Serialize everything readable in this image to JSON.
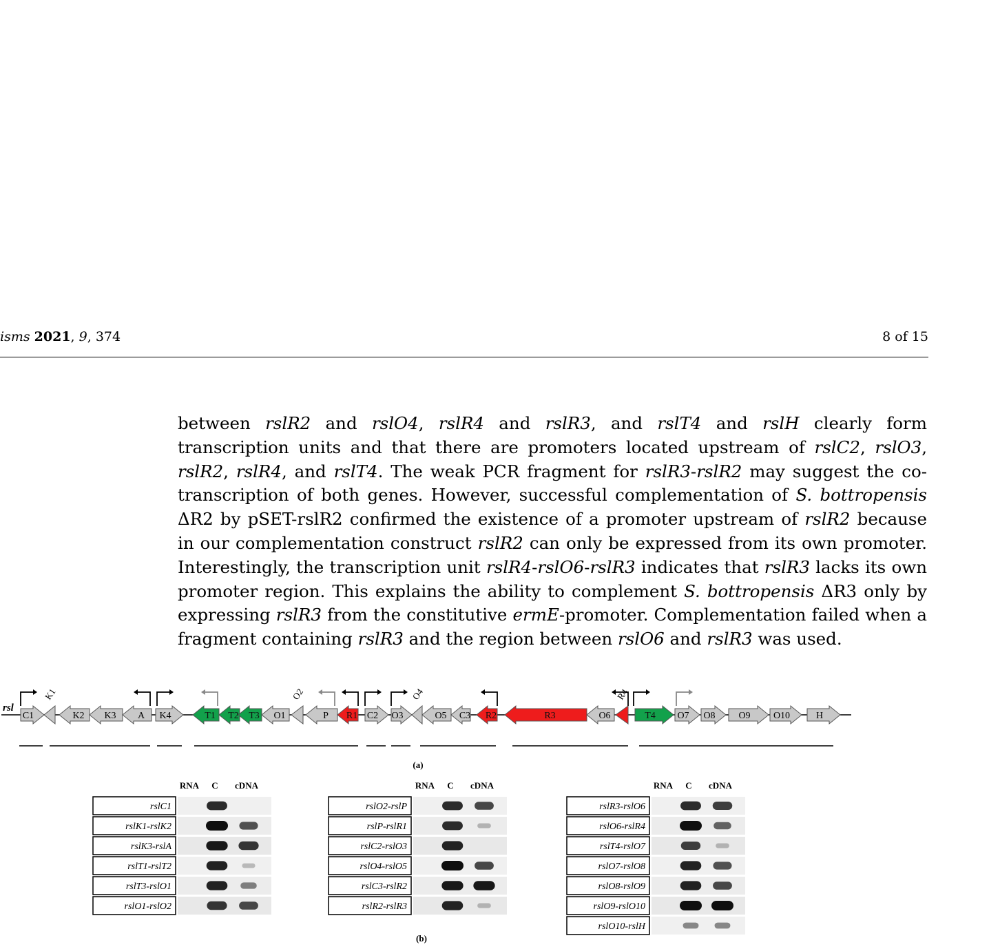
{
  "header": {
    "journal": "isms",
    "year": "2021",
    "volume": "9",
    "article": "374",
    "page": "8 of 15"
  },
  "paragraph": [
    {
      "t": "between "
    },
    {
      "i": "rslR2"
    },
    {
      "t": " and "
    },
    {
      "i": "rslO4"
    },
    {
      "t": ", "
    },
    {
      "i": "rslR4"
    },
    {
      "t": " and "
    },
    {
      "i": "rslR3"
    },
    {
      "t": ", and "
    },
    {
      "i": "rslT4"
    },
    {
      "t": " and "
    },
    {
      "i": "rslH"
    },
    {
      "t": " clearly form transcription units and that there are promoters located upstream of "
    },
    {
      "i": "rslC2"
    },
    {
      "t": ", "
    },
    {
      "i": "rslO3"
    },
    {
      "t": ", "
    },
    {
      "i": "rslR2"
    },
    {
      "t": ", "
    },
    {
      "i": "rslR4"
    },
    {
      "t": ", and "
    },
    {
      "i": "rslT4"
    },
    {
      "t": ". The weak PCR fragment for "
    },
    {
      "i": "rslR3"
    },
    {
      "t": "-"
    },
    {
      "i": "rslR2"
    },
    {
      "t": " may suggest the co-transcription of both genes. However, successful complementation of "
    },
    {
      "i": "S. bottropensis"
    },
    {
      "t": " ΔR2 by pSET-rslR2 confirmed the existence of a promoter upstream of "
    },
    {
      "i": "rslR2"
    },
    {
      "t": " because in our complementation construct "
    },
    {
      "i": "rslR2"
    },
    {
      "t": " can only be expressed from its own promoter. Interestingly, the transcription unit "
    },
    {
      "i": "rslR4"
    },
    {
      "t": "-"
    },
    {
      "i": "rslO6"
    },
    {
      "t": "-"
    },
    {
      "i": "rslR3"
    },
    {
      "t": " indicates that "
    },
    {
      "i": "rslR3"
    },
    {
      "t": " lacks its own promoter region. This explains the ability to complement "
    },
    {
      "i": "S. bottropensis"
    },
    {
      "t": " ΔR3 only by expressing "
    },
    {
      "i": "rslR3"
    },
    {
      "t": " from the constitutive "
    },
    {
      "i": "ermE"
    },
    {
      "t": "-promoter. Complementation failed when a fragment containing "
    },
    {
      "i": "rslR3"
    },
    {
      "t": " and the region between "
    },
    {
      "i": "rslO6"
    },
    {
      "t": " and "
    },
    {
      "i": "rslR3"
    },
    {
      "t": " was used."
    }
  ],
  "figure": {
    "cluster_label": "rsl",
    "panel_a_label": "(a)",
    "panel_b_label": "(b)",
    "colors": {
      "grey": "#c8c8c8",
      "green": "#12a14b",
      "red": "#ee1c1c"
    },
    "genes": [
      {
        "label": "C1",
        "dir": "right",
        "color": "grey",
        "start": 30,
        "end": 64,
        "outside": ""
      },
      {
        "label": "",
        "dir": "left",
        "color": "grey",
        "start": 64,
        "end": 80,
        "outside": "K1"
      },
      {
        "label": "K2",
        "dir": "left",
        "color": "grey",
        "start": 86,
        "end": 130,
        "outside": ""
      },
      {
        "label": "K3",
        "dir": "left",
        "color": "grey",
        "start": 130,
        "end": 178,
        "outside": ""
      },
      {
        "label": "A",
        "dir": "left",
        "color": "grey",
        "start": 178,
        "end": 220,
        "outside": ""
      },
      {
        "label": "K4",
        "dir": "right",
        "color": "grey",
        "start": 226,
        "end": 266,
        "outside": ""
      },
      {
        "label": "T1",
        "dir": "left",
        "color": "green",
        "start": 280,
        "end": 318,
        "outside": ""
      },
      {
        "label": "T2",
        "dir": "left",
        "color": "green",
        "start": 318,
        "end": 348,
        "outside": ""
      },
      {
        "label": "T3",
        "dir": "left",
        "color": "green",
        "start": 346,
        "end": 380,
        "outside": ""
      },
      {
        "label": "O1",
        "dir": "left",
        "color": "grey",
        "start": 380,
        "end": 420,
        "outside": ""
      },
      {
        "label": "",
        "dir": "left",
        "color": "grey",
        "start": 423,
        "end": 440,
        "outside": "O2"
      },
      {
        "label": "P",
        "dir": "left",
        "color": "grey",
        "start": 444,
        "end": 490,
        "outside": ""
      },
      {
        "label": "R1",
        "dir": "left",
        "color": "red",
        "start": 490,
        "end": 520,
        "outside": ""
      },
      {
        "label": "C2",
        "dir": "right",
        "color": "grey",
        "start": 530,
        "end": 564,
        "outside": ""
      },
      {
        "label": "O3",
        "dir": "right",
        "color": "grey",
        "start": 568,
        "end": 598,
        "outside": ""
      },
      {
        "label": "",
        "dir": "left",
        "color": "grey",
        "start": 598,
        "end": 613,
        "outside": "O4"
      },
      {
        "label": "O5",
        "dir": "left",
        "color": "grey",
        "start": 613,
        "end": 655,
        "outside": ""
      },
      {
        "label": "C3",
        "dir": "left",
        "color": "grey",
        "start": 655,
        "end": 683,
        "outside": ""
      },
      {
        "label": "R2",
        "dir": "left",
        "color": "red",
        "start": 692,
        "end": 722,
        "outside": ""
      },
      {
        "label": "R3",
        "dir": "left",
        "color": "red",
        "start": 733,
        "end": 852,
        "outside": ""
      },
      {
        "label": "O6",
        "dir": "left",
        "color": "grey",
        "start": 852,
        "end": 892,
        "outside": ""
      },
      {
        "label": "",
        "dir": "left",
        "color": "red",
        "start": 894,
        "end": 912,
        "outside": "R4"
      },
      {
        "label": "T4",
        "dir": "right",
        "color": "green",
        "start": 922,
        "end": 978,
        "outside": ""
      },
      {
        "label": "O7",
        "dir": "right",
        "color": "grey",
        "start": 980,
        "end": 1016,
        "outside": ""
      },
      {
        "label": "O8",
        "dir": "right",
        "color": "grey",
        "start": 1018,
        "end": 1054,
        "outside": ""
      },
      {
        "label": "O9",
        "dir": "right",
        "color": "grey",
        "start": 1058,
        "end": 1116,
        "outside": ""
      },
      {
        "label": "O10",
        "dir": "right",
        "color": "grey",
        "start": 1118,
        "end": 1164,
        "outside": ""
      },
      {
        "label": "H",
        "dir": "right",
        "color": "grey",
        "start": 1172,
        "end": 1220,
        "outside": ""
      }
    ],
    "promoters": [
      {
        "x": 30,
        "dir": "right",
        "color": "black"
      },
      {
        "x": 218,
        "dir": "left",
        "color": "black"
      },
      {
        "x": 228,
        "dir": "right",
        "color": "black"
      },
      {
        "x": 316,
        "dir": "left",
        "color": "grey"
      },
      {
        "x": 486,
        "dir": "left",
        "color": "grey"
      },
      {
        "x": 520,
        "dir": "left",
        "color": "black"
      },
      {
        "x": 530,
        "dir": "right",
        "color": "black"
      },
      {
        "x": 568,
        "dir": "right",
        "color": "black"
      },
      {
        "x": 722,
        "dir": "left",
        "color": "black"
      },
      {
        "x": 912,
        "dir": "left",
        "color": "black"
      },
      {
        "x": 920,
        "dir": "right",
        "color": "black"
      },
      {
        "x": 982,
        "dir": "right",
        "color": "grey"
      }
    ],
    "units": [
      [
        28,
        62
      ],
      [
        72,
        218
      ],
      [
        228,
        264
      ],
      [
        282,
        520
      ],
      [
        532,
        560
      ],
      [
        568,
        596
      ],
      [
        610,
        720
      ],
      [
        744,
        912
      ],
      [
        928,
        1210
      ]
    ],
    "columns": [
      "RNA",
      "C",
      "cDNA"
    ],
    "gels": [
      {
        "rows": [
          {
            "label": "rslC1",
            "bands": [
              0,
              0.85,
              0
            ]
          },
          {
            "label": "rslK1-rslK2",
            "bands": [
              0,
              1,
              0.65
            ]
          },
          {
            "label": "rslK3-rslA",
            "bands": [
              0,
              0.95,
              0.8
            ]
          },
          {
            "label": "rslT1-rslT2",
            "bands": [
              0,
              0.9,
              0.08
            ]
          },
          {
            "label": "rslT3-rslO1",
            "bands": [
              0,
              0.9,
              0.4
            ]
          },
          {
            "label": "rslO1-rslO2",
            "bands": [
              0,
              0.8,
              0.7
            ]
          }
        ]
      },
      {
        "rows": [
          {
            "label": "rslO2-rslP",
            "bands": [
              0,
              0.85,
              0.7
            ]
          },
          {
            "label": "rslP-rslR1",
            "bands": [
              0,
              0.85,
              0.12
            ]
          },
          {
            "label": "rslC2-rslO3",
            "bands": [
              0,
              0.9,
              0
            ]
          },
          {
            "label": "rslO4-rslO5",
            "bands": [
              0,
              1,
              0.7
            ]
          },
          {
            "label": "rslC3-rslR2",
            "bands": [
              0,
              0.95,
              0.95
            ]
          },
          {
            "label": "rslR2-rslR3",
            "bands": [
              0,
              0.9,
              0.12
            ]
          }
        ]
      },
      {
        "rows": [
          {
            "label": "rslR3-rslO6",
            "bands": [
              0,
              0.85,
              0.75
            ]
          },
          {
            "label": "rslO6-rslR4",
            "bands": [
              0,
              1,
              0.55
            ]
          },
          {
            "label": "rslT4-rslO7",
            "bands": [
              0,
              0.75,
              0.12
            ]
          },
          {
            "label": "rslO7-rslO8",
            "bands": [
              0,
              0.9,
              0.65
            ]
          },
          {
            "label": "rslO8-rslO9",
            "bands": [
              0,
              0.9,
              0.7
            ]
          },
          {
            "label": "rslO9-rslO10",
            "bands": [
              0,
              1,
              1
            ]
          },
          {
            "label": "rslO10-rslH",
            "bands": [
              0,
              0.35,
              0.35
            ]
          }
        ]
      }
    ]
  }
}
